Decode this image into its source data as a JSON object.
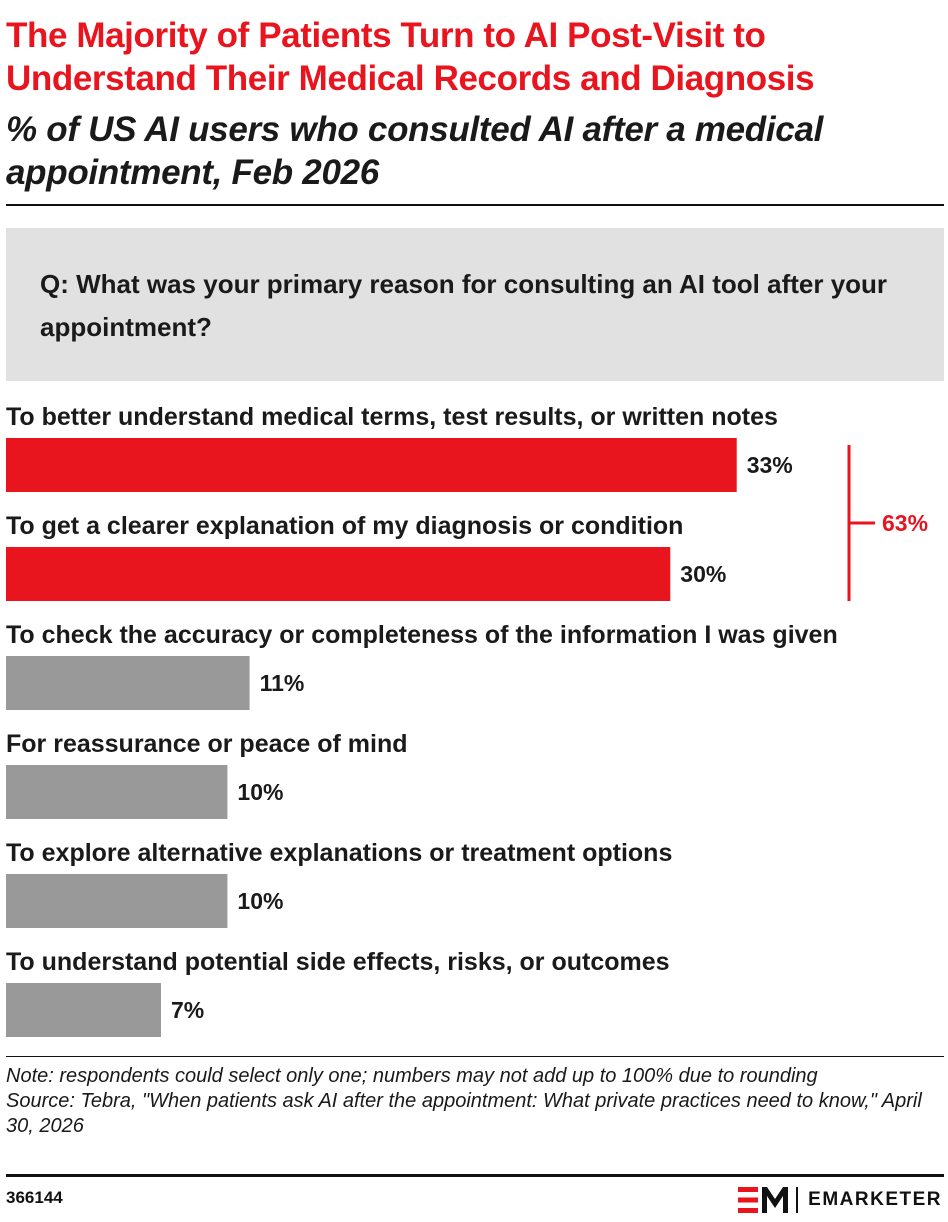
{
  "header": {
    "title": "The Majority of Patients Turn to AI Post-Visit to Understand Their Medical Records and Diagnosis",
    "subtitle": "% of US AI users who consulted AI after a medical appointment, Feb 2026"
  },
  "question": "Q: What was your primary reason for consulting an AI tool after your appointment?",
  "colors": {
    "accent": "#e8141e",
    "bar_gray": "#999999",
    "question_bg": "#e1e1e1"
  },
  "chart_data": {
    "type": "bar",
    "orientation": "horizontal",
    "categories": [
      "To better understand medical terms, test results, or written notes",
      "To get a clearer explanation of my diagnosis or condition",
      "To check the accuracy or completeness of the information I was given",
      "For reassurance or peace of mind",
      "To explore alternative explanations or treatment options",
      "To understand potential side effects, risks, or outcomes"
    ],
    "values": [
      33,
      30,
      11,
      10,
      10,
      7
    ],
    "value_labels": [
      "33%",
      "30%",
      "11%",
      "10%",
      "10%",
      "7%"
    ],
    "highlighted": [
      true,
      true,
      false,
      false,
      false,
      false
    ],
    "bracket": {
      "from_index": 0,
      "to_index": 1,
      "label": "63%"
    },
    "xlim": [
      0,
      42
    ]
  },
  "notes": {
    "note": "Note: respondents could select only one; numbers may not add up to 100% due to rounding",
    "source": "Source: Tebra, \"When patients ask AI after the appointment: What private practices need to know,\" April 30, 2026"
  },
  "footer": {
    "chart_id": "366144",
    "brand_name": "EMARKETER",
    "brand_logo_icon": "em-logo-icon"
  }
}
